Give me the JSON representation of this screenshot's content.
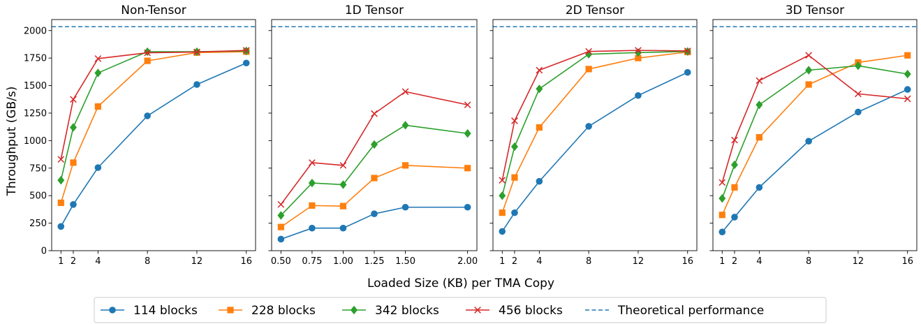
{
  "figure": {
    "ylabel": "Throughput (GB/s)",
    "xlabel": "Loaded Size (KB) per TMA Copy",
    "theoretical_label": "Theoretical performance",
    "theoretical_value": 2035,
    "colors": {
      "114 blocks": "#1f77b4",
      "228 blocks": "#ff7f0e",
      "342 blocks": "#2ca02c",
      "456 blocks": "#d62728",
      "theoretical": "#1f77b4"
    },
    "markers": {
      "114 blocks": "circle",
      "228 blocks": "square",
      "342 blocks": "diamond",
      "456 blocks": "x"
    },
    "legend": {
      "placement": "bottom-center",
      "entries": [
        "114 blocks",
        "228 blocks",
        "342 blocks",
        "456 blocks",
        "Theoretical performance"
      ]
    }
  },
  "chart_data": [
    {
      "type": "line",
      "title": "Non-Tensor",
      "x": [
        1,
        2,
        4,
        8,
        12,
        16
      ],
      "xticks": [
        1,
        2,
        4,
        8,
        12,
        16
      ],
      "xticklabels": [
        "1",
        "2",
        "4",
        "8",
        "12",
        "16"
      ],
      "xlim": [
        0.25,
        16.75
      ],
      "ylim": [
        0,
        2100
      ],
      "yticks": [
        0,
        250,
        500,
        750,
        1000,
        1250,
        1500,
        1750,
        2000
      ],
      "yticklabels": [
        "0",
        "250",
        "500",
        "750",
        "1000",
        "1250",
        "1500",
        "1750",
        "2000"
      ],
      "series": [
        {
          "name": "114 blocks",
          "values": [
            220,
            420,
            755,
            1225,
            1510,
            1705
          ]
        },
        {
          "name": "228 blocks",
          "values": [
            435,
            800,
            1310,
            1725,
            1800,
            1808
          ]
        },
        {
          "name": "342 blocks",
          "values": [
            640,
            1120,
            1615,
            1808,
            1808,
            1815
          ]
        },
        {
          "name": "456 blocks",
          "values": [
            830,
            1375,
            1745,
            1798,
            1805,
            1820
          ]
        }
      ],
      "theoretical": 2035
    },
    {
      "type": "line",
      "title": "1D Tensor",
      "x": [
        0.5,
        0.75,
        1.0,
        1.25,
        1.5,
        2.0
      ],
      "xticks": [
        0.5,
        0.75,
        1.0,
        1.25,
        1.5,
        2.0
      ],
      "xticklabels": [
        "0.50",
        "0.75",
        "1.00",
        "1.25",
        "1.50",
        "2.00"
      ],
      "xlim": [
        0.425,
        2.075
      ],
      "ylim": [
        0,
        2100
      ],
      "yticks": [
        0,
        250,
        500,
        750,
        1000,
        1250,
        1500,
        1750,
        2000
      ],
      "yticklabels": [],
      "series": [
        {
          "name": "114 blocks",
          "values": [
            105,
            205,
            205,
            335,
            395,
            395
          ]
        },
        {
          "name": "228 blocks",
          "values": [
            215,
            410,
            405,
            660,
            775,
            750
          ]
        },
        {
          "name": "342 blocks",
          "values": [
            320,
            615,
            600,
            965,
            1140,
            1065
          ]
        },
        {
          "name": "456 blocks",
          "values": [
            420,
            800,
            775,
            1245,
            1445,
            1325
          ]
        }
      ],
      "theoretical": 2035
    },
    {
      "type": "line",
      "title": "2D Tensor",
      "x": [
        1,
        2,
        4,
        8,
        12,
        16
      ],
      "xticks": [
        1,
        2,
        4,
        8,
        12,
        16
      ],
      "xticklabels": [
        "1",
        "2",
        "4",
        "8",
        "12",
        "16"
      ],
      "xlim": [
        0.25,
        16.75
      ],
      "ylim": [
        0,
        2100
      ],
      "yticks": [
        0,
        250,
        500,
        750,
        1000,
        1250,
        1500,
        1750,
        2000
      ],
      "yticklabels": [],
      "series": [
        {
          "name": "114 blocks",
          "values": [
            175,
            345,
            630,
            1130,
            1410,
            1620
          ]
        },
        {
          "name": "228 blocks",
          "values": [
            345,
            665,
            1120,
            1650,
            1750,
            1805
          ]
        },
        {
          "name": "342 blocks",
          "values": [
            500,
            945,
            1470,
            1785,
            1800,
            1810
          ]
        },
        {
          "name": "456 blocks",
          "values": [
            640,
            1180,
            1640,
            1810,
            1820,
            1815
          ]
        }
      ],
      "theoretical": 2035
    },
    {
      "type": "line",
      "title": "3D Tensor",
      "x": [
        1,
        2,
        4,
        8,
        12,
        16
      ],
      "xticks": [
        1,
        2,
        4,
        8,
        12,
        16
      ],
      "xticklabels": [
        "1",
        "2",
        "4",
        "8",
        "12",
        "16"
      ],
      "xlim": [
        0.25,
        16.75
      ],
      "ylim": [
        0,
        2100
      ],
      "yticks": [
        0,
        250,
        500,
        750,
        1000,
        1250,
        1500,
        1750,
        2000
      ],
      "yticklabels": [],
      "series": [
        {
          "name": "114 blocks",
          "values": [
            170,
            305,
            575,
            995,
            1260,
            1465
          ]
        },
        {
          "name": "228 blocks",
          "values": [
            325,
            575,
            1030,
            1510,
            1710,
            1775
          ]
        },
        {
          "name": "342 blocks",
          "values": [
            475,
            780,
            1325,
            1640,
            1680,
            1605
          ]
        },
        {
          "name": "456 blocks",
          "values": [
            620,
            1005,
            1545,
            1775,
            1425,
            1380
          ]
        }
      ],
      "theoretical": 2035
    }
  ]
}
